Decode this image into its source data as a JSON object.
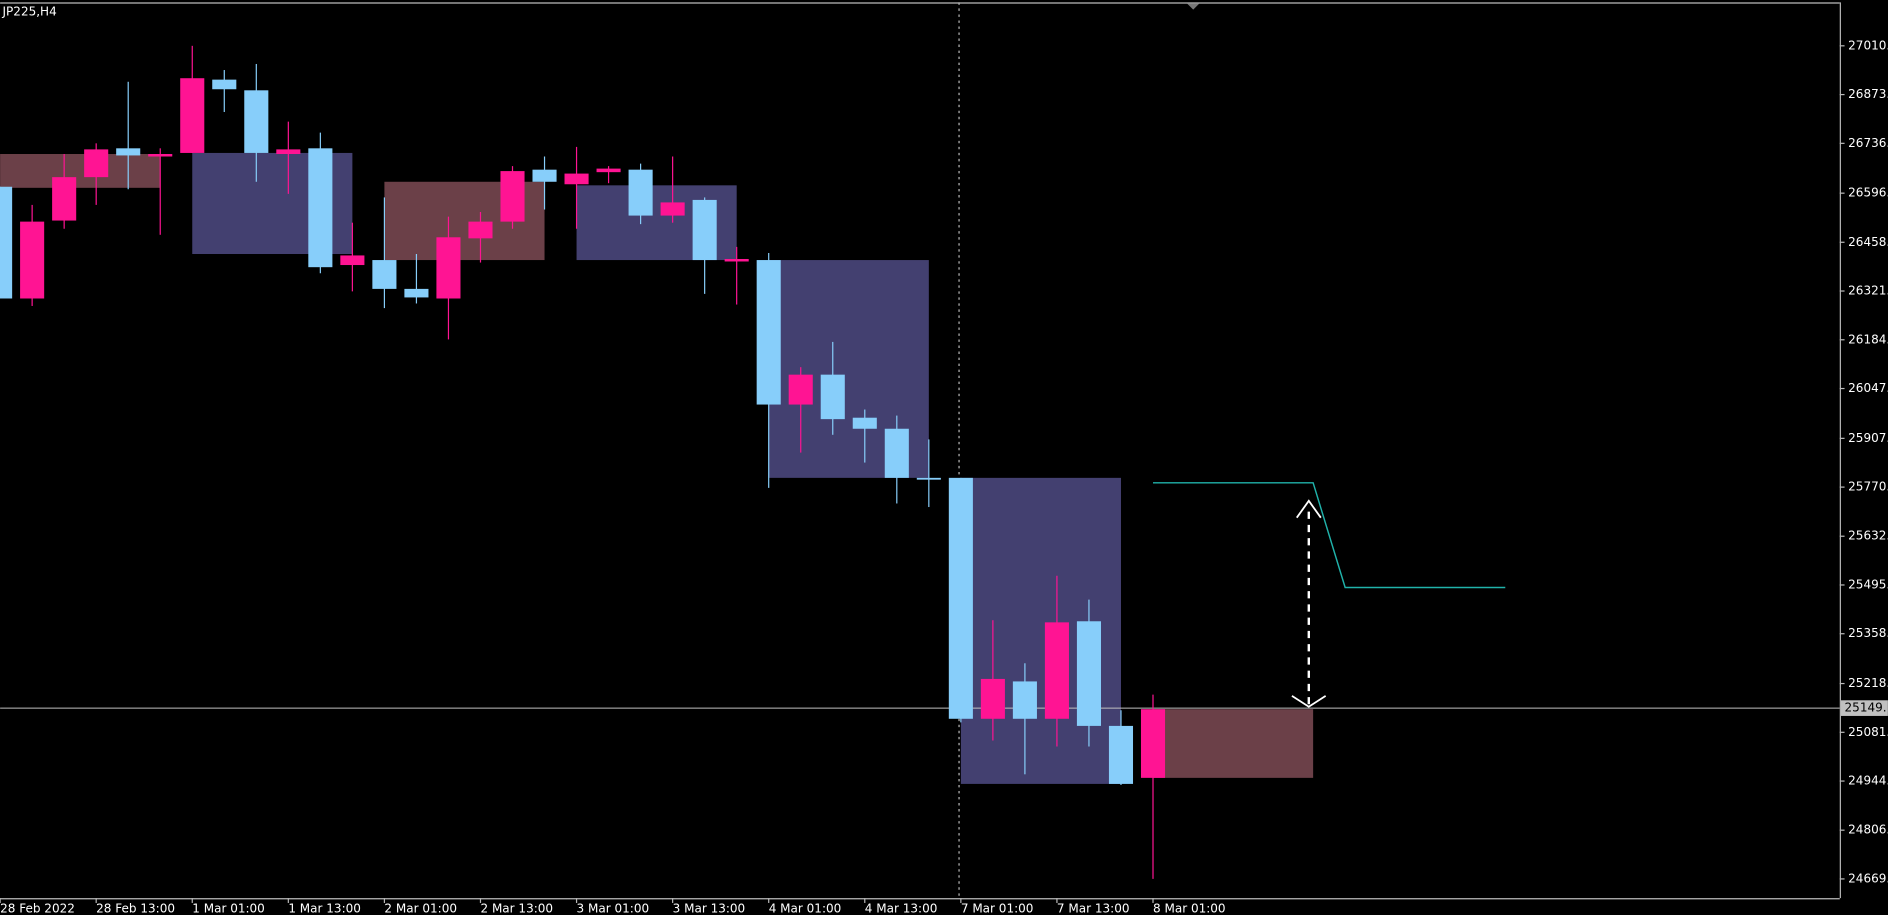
{
  "chart_data": {
    "type": "candlestick",
    "title": "JP225,H4",
    "categories": [
      "28 Feb 2022",
      null,
      null,
      "28 Feb 13:00",
      null,
      null,
      "1 Mar 01:00",
      null,
      null,
      "1 Mar 13:00",
      null,
      null,
      "2 Mar 01:00",
      null,
      null,
      "2 Mar 13:00",
      null,
      null,
      "3 Mar 01:00",
      null,
      null,
      "3 Mar 13:00",
      null,
      null,
      "4 Mar 01:00",
      null,
      null,
      "4 Mar 13:00",
      null,
      null,
      "7 Mar 01:00",
      null,
      null,
      "7 Mar 13:00",
      null,
      null,
      "8 Mar 01:00"
    ],
    "open": [
      26614,
      26300,
      26519,
      26641,
      26722,
      26699,
      26709,
      26915,
      26885,
      26706,
      26722,
      26394,
      26408,
      26327,
      26300,
      26469,
      26516,
      26662,
      26621,
      26655,
      26662,
      26533,
      26577,
      26404,
      26408,
      26002,
      26086,
      25965,
      25934,
      25796,
      25796,
      25119,
      25224,
      25119,
      25393,
      25099,
      24953
    ],
    "high": [
      26614,
      26563,
      26706,
      26736,
      26909,
      26722,
      27010,
      26942,
      26959,
      26797,
      26766,
      26513,
      26584,
      26425,
      26530,
      26543,
      26672,
      26699,
      26726,
      26672,
      26679,
      26699,
      26584,
      26445,
      26428,
      26107,
      26178,
      25988,
      25971,
      25904,
      25796,
      25396,
      25275,
      25521,
      25454,
      25143,
      25187
    ],
    "low": [
      26300,
      26279,
      26496,
      26563,
      26607,
      26479,
      26709,
      26824,
      26628,
      26594,
      26371,
      26320,
      26273,
      26286,
      26185,
      26401,
      26496,
      26550,
      26496,
      26624,
      26509,
      26513,
      26313,
      26283,
      25768,
      25867,
      25917,
      25839,
      25724,
      25714,
      25109,
      25058,
      24963,
      25041,
      25041,
      24933,
      24669
    ],
    "close": [
      26300,
      26516,
      26641,
      26719,
      26702,
      26706,
      26919,
      26888,
      26709,
      26719,
      26388,
      26421,
      26327,
      26303,
      26472,
      26516,
      26658,
      26628,
      26651,
      26665,
      26533,
      26570,
      26408,
      26411,
      26002,
      26086,
      25961,
      25934,
      25796,
      25792,
      25119,
      25231,
      25119,
      25390,
      25099,
      24936,
      25146
    ],
    "up_color": "#ff1493",
    "down_color": "#87cefa",
    "zones": [
      {
        "from": 0,
        "to": 5,
        "high": 26706,
        "low": 26611,
        "color": "#6b4048"
      },
      {
        "from": 6,
        "to": 11,
        "high": 26709,
        "low": 26425,
        "color": "#434070"
      },
      {
        "from": 12,
        "to": 17,
        "high": 26628,
        "low": 26408,
        "color": "#6b4048"
      },
      {
        "from": 18,
        "to": 23,
        "high": 26618,
        "low": 26408,
        "color": "#434070"
      },
      {
        "from": 24,
        "to": 29,
        "high": 26408,
        "low": 25796,
        "color": "#434070"
      },
      {
        "from": 30,
        "to": 35,
        "high": 25796,
        "low": 24936,
        "color": "#434070"
      },
      {
        "from": 36,
        "to": 41,
        "high": 25146,
        "low": 24953,
        "color": "#6b4048"
      }
    ],
    "line": {
      "x": [
        36,
        41,
        42,
        47
      ],
      "values": [
        25782,
        25782,
        25488,
        25488
      ],
      "color": "#20b2aa"
    },
    "current_price": {
      "value": 25149,
      "label": "25149."
    },
    "ylim": [
      24615,
      27132
    ],
    "yticks": [
      {
        "value": 27010,
        "label": "27010."
      },
      {
        "value": 26873,
        "label": "26873."
      },
      {
        "value": 26736,
        "label": "26736."
      },
      {
        "value": 26596,
        "label": "26596."
      },
      {
        "value": 26458,
        "label": "26458."
      },
      {
        "value": 26321,
        "label": "26321."
      },
      {
        "value": 26184,
        "label": "26184."
      },
      {
        "value": 26047,
        "label": "26047."
      },
      {
        "value": 25907,
        "label": "25907."
      },
      {
        "value": 25770,
        "label": "25770."
      },
      {
        "value": 25632,
        "label": "25632."
      },
      {
        "value": 25495,
        "label": "25495."
      },
      {
        "value": 25358,
        "label": "25358."
      },
      {
        "value": 25218,
        "label": "25218."
      },
      {
        "value": 25081,
        "label": "25081."
      },
      {
        "value": 24944,
        "label": "24944."
      },
      {
        "value": 24806,
        "label": "24806."
      },
      {
        "value": 24669,
        "label": "24669."
      }
    ]
  }
}
